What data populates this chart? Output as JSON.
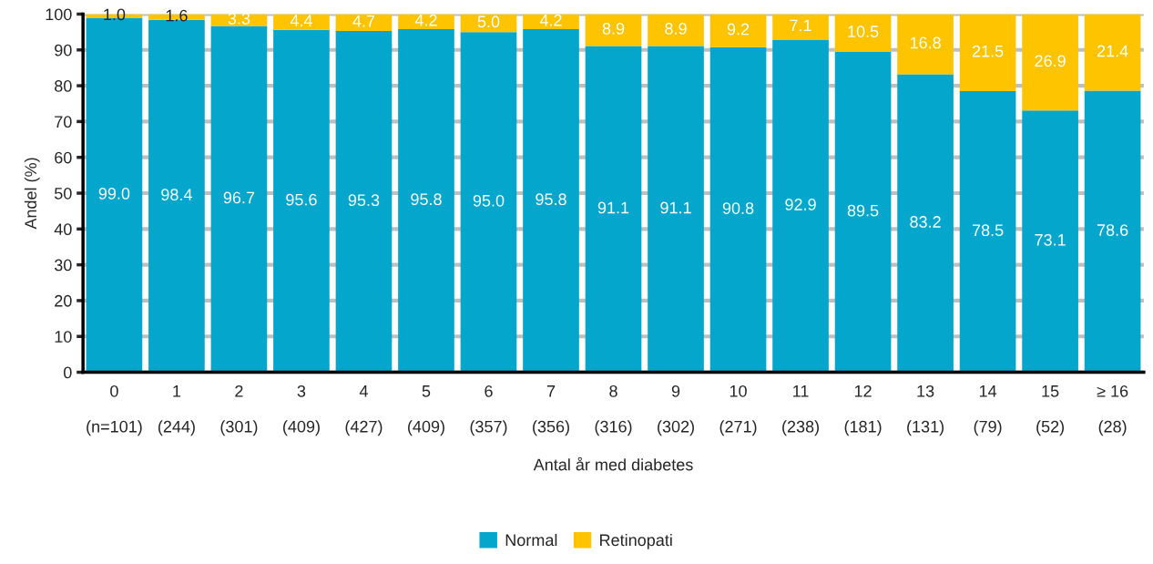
{
  "chart_data": {
    "type": "bar",
    "stacked": true,
    "xlabel": "Antal år med diabetes",
    "ylabel": "Andel (%)",
    "categories": [
      "0\n\n(n=101)",
      "1\n\n(244)",
      "2\n\n(301)",
      "3\n\n(409)",
      "4\n\n(427)",
      "5\n\n(409)",
      "6\n\n(357)",
      "7\n\n(356)",
      "8\n\n(316)",
      "9\n\n(302)",
      "10\n\n(271)",
      "11\n\n(238)",
      "12\n\n(181)",
      "13\n\n(131)",
      "14\n\n(79)",
      "15\n\n(52)",
      "≥ 16\n\n(28)"
    ],
    "series": [
      {
        "name": "Normal",
        "color": "#04a6cc",
        "values": [
          99.0,
          98.4,
          96.7,
          95.6,
          95.3,
          95.8,
          95.0,
          95.8,
          91.1,
          91.1,
          90.8,
          92.9,
          89.5,
          83.2,
          78.5,
          73.1,
          78.6
        ],
        "value_labels": [
          "99.0",
          "98.4",
          "96.7",
          "95.6",
          "95.3",
          "95.8",
          "95.0",
          "95.8",
          "91.1",
          "91.1",
          "90.8",
          "92.9",
          "89.5",
          "83.2",
          "78.5",
          "73.1",
          "78.6"
        ]
      },
      {
        "name": "Retinopati",
        "color": "#fec400",
        "values": [
          1.0,
          1.6,
          3.3,
          4.4,
          4.7,
          4.2,
          5.0,
          4.2,
          8.9,
          8.9,
          9.2,
          7.1,
          10.5,
          16.8,
          21.5,
          26.9,
          21.4
        ],
        "value_labels": [
          "1.0",
          "1.6",
          "3.3",
          "4.4",
          "4.7",
          "4.2",
          "5.0",
          "4.2",
          "8.9",
          "8.9",
          "9.2",
          "7.1",
          "10.5",
          "16.8",
          "21.5",
          "26.9",
          "21.4"
        ]
      }
    ],
    "ylim": [
      0,
      100
    ],
    "yticks": [
      0,
      10,
      20,
      30,
      40,
      50,
      60,
      70,
      80,
      90,
      100
    ],
    "grid": "y",
    "legend": "bottom"
  }
}
